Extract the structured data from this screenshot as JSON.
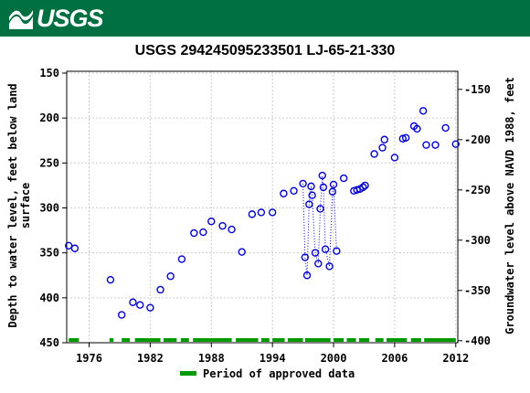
{
  "header": {
    "logo_text": "USGS",
    "logo_icon": "usgs-wave-icon",
    "banner_color": "#006f41"
  },
  "chart_data": {
    "type": "scatter",
    "title": "USGS 294245095233501 LJ-65-21-330",
    "ylabel_left": [
      "Depth to water level, feet below land",
      "surface"
    ],
    "ylabel_right": "Groundwater level above NAVD 1988, feet",
    "xlim": [
      1973.8,
      2012.2
    ],
    "ylim_left": [
      450,
      148
    ],
    "ylim_right": [
      -402,
      -132
    ],
    "x_ticks": [
      1976,
      1982,
      1988,
      1994,
      2000,
      2006,
      2012
    ],
    "y_ticks_left": [
      150,
      200,
      250,
      300,
      350,
      400,
      450
    ],
    "y_ticks_right": [
      -150,
      -200,
      -250,
      -300,
      -350,
      -400
    ],
    "grid": true,
    "marker_color": "#0000cc",
    "approved_color": "#009900",
    "legend": {
      "label": "Period of approved data",
      "placement": "bottom"
    },
    "points": [
      {
        "x": 1974.0,
        "y": 342
      },
      {
        "x": 1974.6,
        "y": 345
      },
      {
        "x": 1978.1,
        "y": 380
      },
      {
        "x": 1979.2,
        "y": 419
      },
      {
        "x": 1980.3,
        "y": 405
      },
      {
        "x": 1981.0,
        "y": 408
      },
      {
        "x": 1982.0,
        "y": 411
      },
      {
        "x": 1983.0,
        "y": 391
      },
      {
        "x": 1984.0,
        "y": 376
      },
      {
        "x": 1985.1,
        "y": 357
      },
      {
        "x": 1986.3,
        "y": 328
      },
      {
        "x": 1987.2,
        "y": 327
      },
      {
        "x": 1988.0,
        "y": 315
      },
      {
        "x": 1989.1,
        "y": 320
      },
      {
        "x": 1990.0,
        "y": 324
      },
      {
        "x": 1991.0,
        "y": 349
      },
      {
        "x": 1992.0,
        "y": 307
      },
      {
        "x": 1992.9,
        "y": 305
      },
      {
        "x": 1994.0,
        "y": 305
      },
      {
        "x": 1995.1,
        "y": 284
      },
      {
        "x": 1996.1,
        "y": 281
      },
      {
        "x": 1997.0,
        "y": 273
      },
      {
        "x": 1997.2,
        "y": 355
      },
      {
        "x": 1997.4,
        "y": 375
      },
      {
        "x": 1997.6,
        "y": 296
      },
      {
        "x": 1997.8,
        "y": 276
      },
      {
        "x": 1997.9,
        "y": 286
      },
      {
        "x": 1998.2,
        "y": 350
      },
      {
        "x": 1998.5,
        "y": 362
      },
      {
        "x": 1998.7,
        "y": 301
      },
      {
        "x": 1998.9,
        "y": 264
      },
      {
        "x": 1999.0,
        "y": 277
      },
      {
        "x": 1999.2,
        "y": 346
      },
      {
        "x": 1999.6,
        "y": 365
      },
      {
        "x": 1999.9,
        "y": 282
      },
      {
        "x": 2000.0,
        "y": 274
      },
      {
        "x": 2000.3,
        "y": 348
      },
      {
        "x": 2001.0,
        "y": 267
      },
      {
        "x": 2002.0,
        "y": 281
      },
      {
        "x": 2002.3,
        "y": 280
      },
      {
        "x": 2002.6,
        "y": 279
      },
      {
        "x": 2002.9,
        "y": 277
      },
      {
        "x": 2003.1,
        "y": 275
      },
      {
        "x": 2004.0,
        "y": 240
      },
      {
        "x": 2004.8,
        "y": 233
      },
      {
        "x": 2005.0,
        "y": 224
      },
      {
        "x": 2006.0,
        "y": 244
      },
      {
        "x": 2006.8,
        "y": 223
      },
      {
        "x": 2007.1,
        "y": 222
      },
      {
        "x": 2007.9,
        "y": 209
      },
      {
        "x": 2008.2,
        "y": 212
      },
      {
        "x": 2008.8,
        "y": 192
      },
      {
        "x": 2009.1,
        "y": 230
      },
      {
        "x": 2010.0,
        "y": 230
      },
      {
        "x": 2011.0,
        "y": 211
      },
      {
        "x": 2012.0,
        "y": 229
      }
    ],
    "dotted_segments": [
      [
        21,
        36
      ]
    ],
    "approved_periods": [
      [
        1974.0,
        1975.0
      ],
      [
        1978.0,
        1978.4
      ],
      [
        1979.2,
        1980.0
      ],
      [
        1980.5,
        1983.0
      ],
      [
        1983.3,
        1984.6
      ],
      [
        1985.0,
        1985.8
      ],
      [
        1986.2,
        1990.0
      ],
      [
        1990.4,
        1992.6
      ],
      [
        1992.9,
        1993.7
      ],
      [
        1994.0,
        1995.2
      ],
      [
        1995.5,
        1997.0
      ],
      [
        1997.2,
        1999.7
      ],
      [
        2000.0,
        2001.0
      ],
      [
        2001.3,
        2002.2
      ],
      [
        2002.5,
        2003.5
      ],
      [
        2004.1,
        2004.9
      ],
      [
        2005.2,
        2007.2
      ],
      [
        2007.6,
        2008.6
      ],
      [
        2008.9,
        2012.0
      ]
    ]
  }
}
